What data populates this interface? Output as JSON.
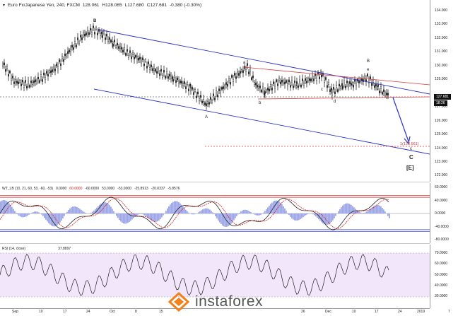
{
  "header": {
    "symbol": "Euro Fx/Japanese Yen, 240, FXCM",
    "o": "128.061",
    "h": "H128.065",
    "l": "L127.680",
    "c": "C127.681",
    "change": "-0.380 (-0.30%)"
  },
  "price_axis": [
    "134.000",
    "133.000",
    "132.000",
    "131.000",
    "130.000",
    "129.000",
    "128.000",
    "127.000",
    "126.000",
    "125.000",
    "124.000",
    "123.000",
    "122.000",
    "121.000"
  ],
  "price_tags": {
    "last": "127.681",
    "time": "18:26"
  },
  "waves": {
    "B": "B",
    "a": "a",
    "b": "b",
    "c": "c",
    "d": "d",
    "e": "e",
    "B2": "B",
    "A": "A",
    "C_small": "c",
    "C": "C",
    "E": "[E]"
  },
  "target_label": "1(123.661)",
  "wt": {
    "title": "WT_LB (10, 21, 60, 53, -60, -53)",
    "values": [
      "0.0000",
      "60.0000",
      "-60.0000",
      "53.0000",
      "-53.0000",
      "-25.8913",
      "-20.0337",
      "-5.8576"
    ],
    "axis": [
      "60.0000",
      "40.0000",
      "0.0000",
      "-40.0000",
      "-80.0000"
    ]
  },
  "rsi": {
    "title": "RSI (14, close)",
    "value": "37.8897",
    "axis": [
      "70.0000",
      "60.0000",
      "50.0000",
      "40.0000",
      "30.0000"
    ]
  },
  "time_axis": [
    "Sep",
    "10",
    "17",
    "24",
    "Oct",
    "8",
    "15",
    "22",
    "29",
    "Nov",
    "12",
    "19",
    "26",
    "Dec",
    "10",
    "17",
    "24",
    "2019",
    "7"
  ],
  "colors": {
    "channel": "#2b33c8",
    "triangle": "#d93a3a",
    "wt_fast": "#d11a1a",
    "wt_hist": "#9ea8e8",
    "rsi_fill": "#f2e6fa",
    "logo": "#f2811d"
  },
  "brand": {
    "name": "instaforex"
  }
}
